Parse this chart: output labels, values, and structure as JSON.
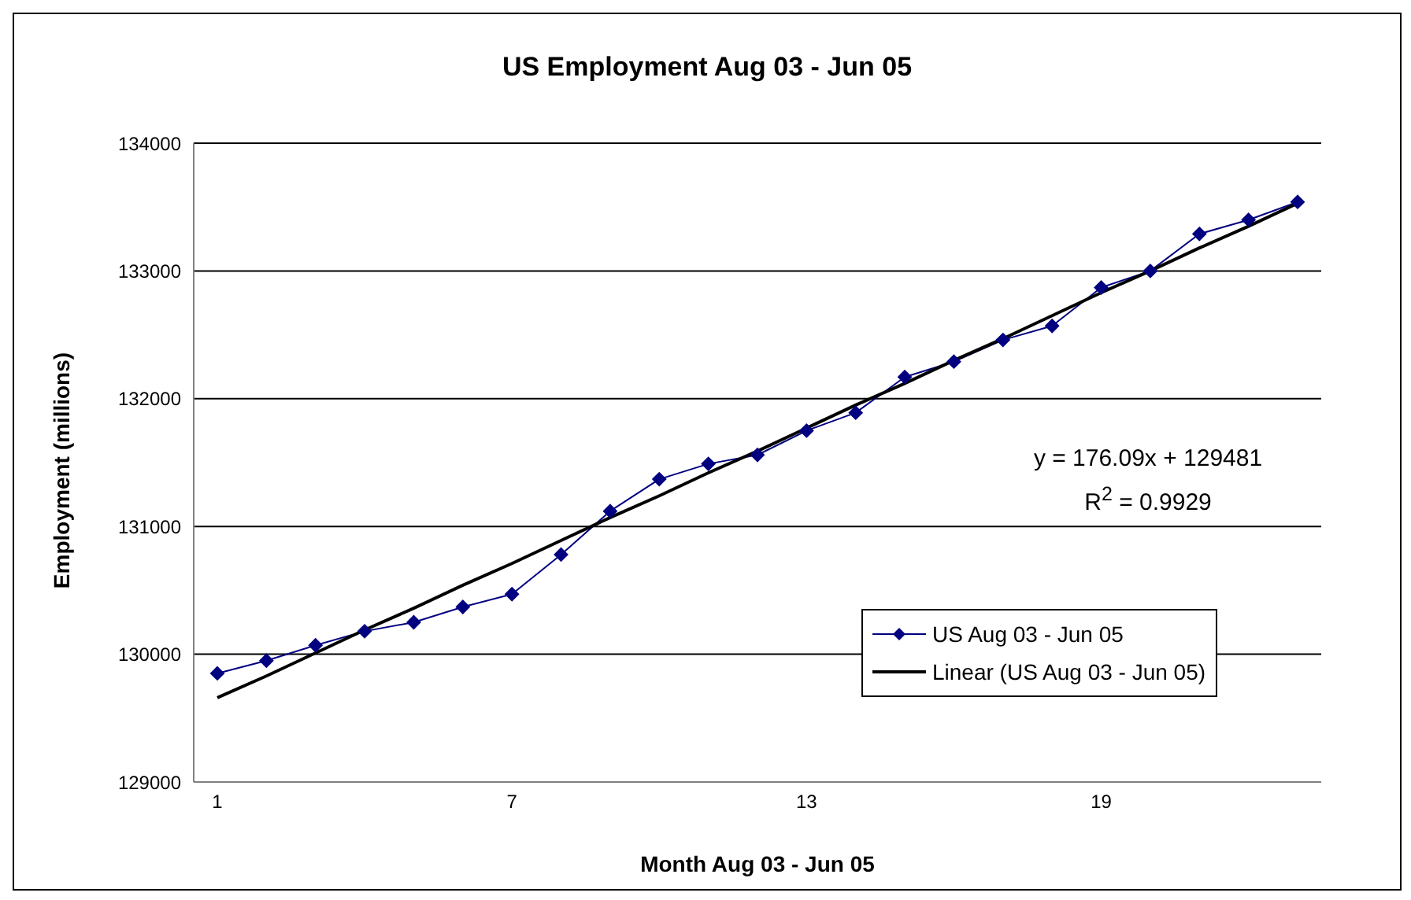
{
  "chart_data": {
    "type": "line",
    "title": "US Employment Aug 03 - Jun 05",
    "xlabel": "Month Aug 03 - Jun 05",
    "ylabel": "Employment (millions)",
    "categories": [
      "1",
      null,
      null,
      null,
      null,
      null,
      "7",
      null,
      null,
      null,
      null,
      null,
      "13",
      null,
      null,
      null,
      null,
      null,
      "19",
      null,
      null,
      null,
      null
    ],
    "series": [
      {
        "name": "US Aug 03 - Jun 05",
        "color": "#000080",
        "marker": "diamond",
        "values": [
          129850,
          129950,
          130070,
          130180,
          130250,
          130370,
          130470,
          130780,
          131120,
          131370,
          131490,
          131560,
          131750,
          131890,
          132170,
          132290,
          132460,
          132570,
          132870,
          133000,
          133290,
          133400,
          133540
        ]
      },
      {
        "name": "Linear (US Aug 03 - Jun 05)",
        "color": "#000000",
        "marker": "none",
        "values": [
          129660,
          129830,
          130010,
          130190,
          130360,
          130540,
          130710,
          130890,
          131070,
          131240,
          131420,
          131590,
          131770,
          131950,
          132120,
          132300,
          132470,
          132650,
          132830,
          133000,
          133180,
          133350,
          133530
        ]
      }
    ],
    "ylim": [
      129000,
      134000
    ],
    "yticks": [
      129000,
      130000,
      131000,
      132000,
      133000,
      134000
    ],
    "grid": "y",
    "legend": "right",
    "annotations": [
      "y = 176.09x + 129481",
      "R$^{2}$ = 0.9929"
    ]
  }
}
